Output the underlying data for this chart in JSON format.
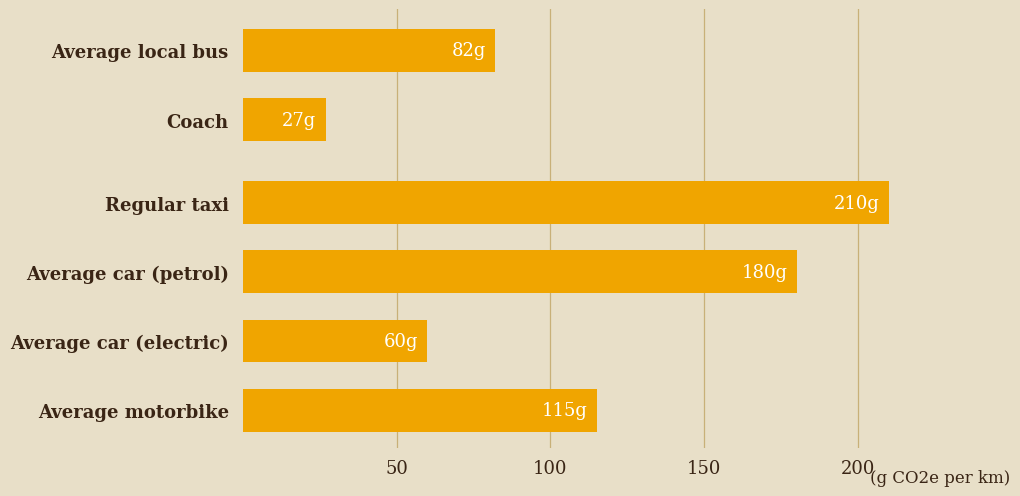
{
  "categories": [
    "Average motorbike",
    "Average car (electric)",
    "Average car (petrol)",
    "Regular taxi",
    "Coach",
    "Average local bus"
  ],
  "values": [
    115,
    60,
    180,
    210,
    27,
    82
  ],
  "labels": [
    "115g",
    "60g",
    "180g",
    "210g",
    "27g",
    "82g"
  ],
  "bar_color": "#F0A500",
  "background_color": "#E8DFC8",
  "text_color": "#3A2515",
  "label_color": "#FFFFFF",
  "gridline_color": "#C8B078",
  "xlim": [
    0,
    222
  ],
  "xticks": [
    50,
    100,
    150,
    200
  ],
  "xlabel_extra": "(g CO2e per km)",
  "bar_height": 0.62,
  "label_fontsize": 13,
  "tick_fontsize": 13,
  "category_fontsize": 13,
  "xlabel_fontsize": 12,
  "y_positions": [
    0,
    1,
    2,
    3,
    4.2,
    5.2
  ]
}
